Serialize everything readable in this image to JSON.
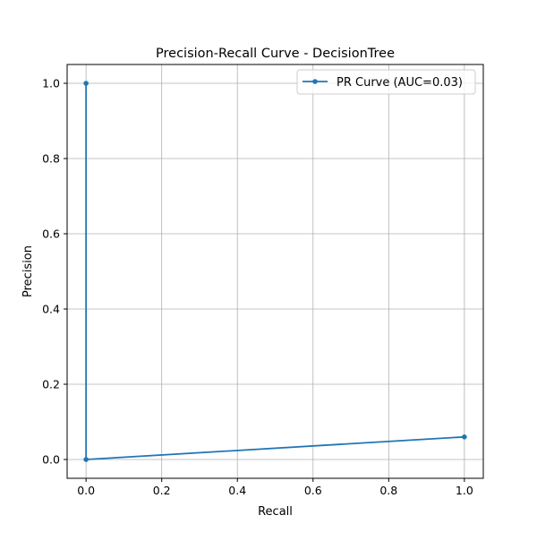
{
  "chart_data": {
    "type": "line",
    "title": "Precision-Recall Curve - DecisionTree",
    "xlabel": "Recall",
    "ylabel": "Precision",
    "xlim": [
      -0.05,
      1.05
    ],
    "ylim": [
      -0.05,
      1.05
    ],
    "xticks": [
      0.0,
      0.2,
      0.4,
      0.6,
      0.8,
      1.0
    ],
    "yticks": [
      0.0,
      0.2,
      0.4,
      0.6,
      0.8,
      1.0
    ],
    "xtick_labels": [
      "0.0",
      "0.2",
      "0.4",
      "0.6",
      "0.8",
      "1.0"
    ],
    "ytick_labels": [
      "0.0",
      "0.2",
      "0.4",
      "0.6",
      "0.8",
      "1.0"
    ],
    "grid": true,
    "legend_position": "top-right",
    "series": [
      {
        "name": "PR Curve (AUC=0.03)",
        "color": "#1f77b4",
        "marker": "circle",
        "x": [
          0.0,
          0.0,
          1.0
        ],
        "y": [
          1.0,
          0.0,
          0.06
        ]
      }
    ]
  }
}
